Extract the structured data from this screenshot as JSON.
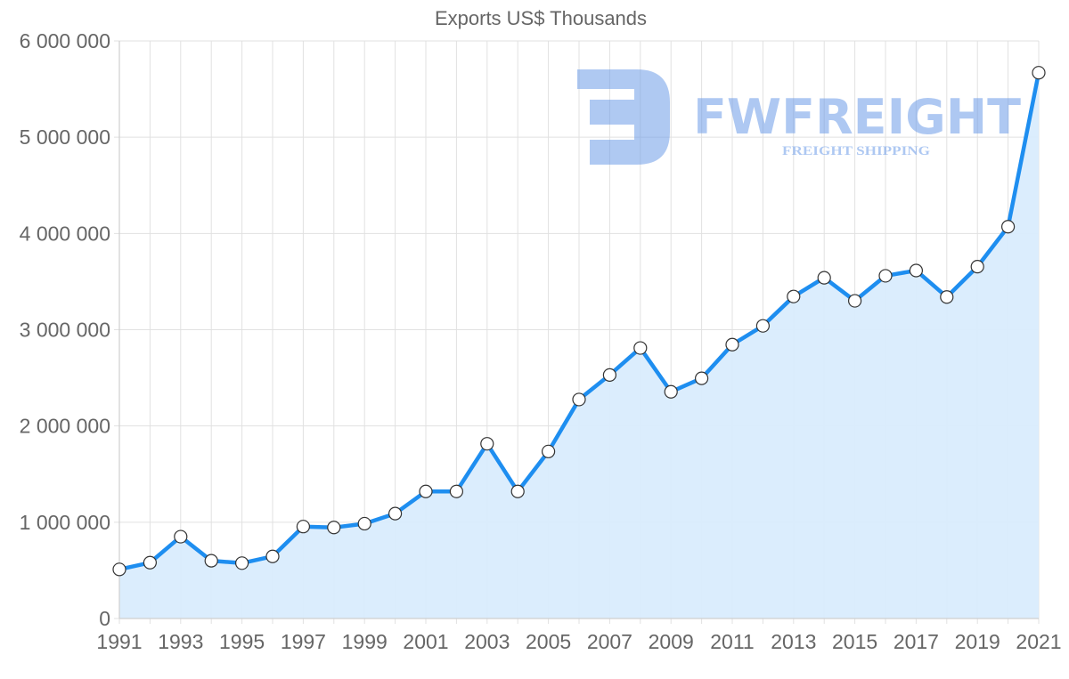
{
  "chart_data": {
    "type": "area",
    "title": "Exports US$ Thousands",
    "xlabel": "",
    "ylabel": "",
    "ylim": [
      0,
      6000000
    ],
    "yticks": [
      0,
      1000000,
      2000000,
      3000000,
      4000000,
      5000000,
      6000000
    ],
    "ytick_labels": [
      "0",
      "1 000 000",
      "2 000 000",
      "3 000 000",
      "4 000 000",
      "5 000 000",
      "6 000 000"
    ],
    "xtick_labels": [
      "1991",
      "1993",
      "1995",
      "1997",
      "1999",
      "2001",
      "2003",
      "2005",
      "2007",
      "2009",
      "2011",
      "2013",
      "2015",
      "2017",
      "2019",
      "2021"
    ],
    "grid": true,
    "legend": null,
    "x": [
      1991,
      1992,
      1993,
      1994,
      1995,
      1996,
      1997,
      1998,
      1999,
      2000,
      2001,
      2002,
      2003,
      2004,
      2005,
      2006,
      2007,
      2008,
      2009,
      2010,
      2011,
      2012,
      2013,
      2014,
      2015,
      2016,
      2017,
      2018,
      2019,
      2020,
      2021
    ],
    "series": [
      {
        "name": "Exports US$ Thousands",
        "values": [
          510000,
          580000,
          850000,
          600000,
          575000,
          645000,
          955000,
          945000,
          985000,
          1090000,
          1320000,
          1320000,
          1815000,
          1320000,
          1735000,
          2275000,
          2530000,
          2810000,
          2355000,
          2495000,
          2845000,
          3040000,
          3345000,
          3540000,
          3300000,
          3560000,
          3615000,
          3340000,
          3655000,
          4070000,
          5670000
        ]
      }
    ],
    "colors": {
      "line": "#1e8ef0",
      "fill": "#d9ecfd",
      "grid": "#e1e1e1",
      "text": "#666666"
    }
  },
  "watermark": {
    "brand": "FWFREIGHT",
    "tagline": "FREIGHT SHIPPING"
  }
}
